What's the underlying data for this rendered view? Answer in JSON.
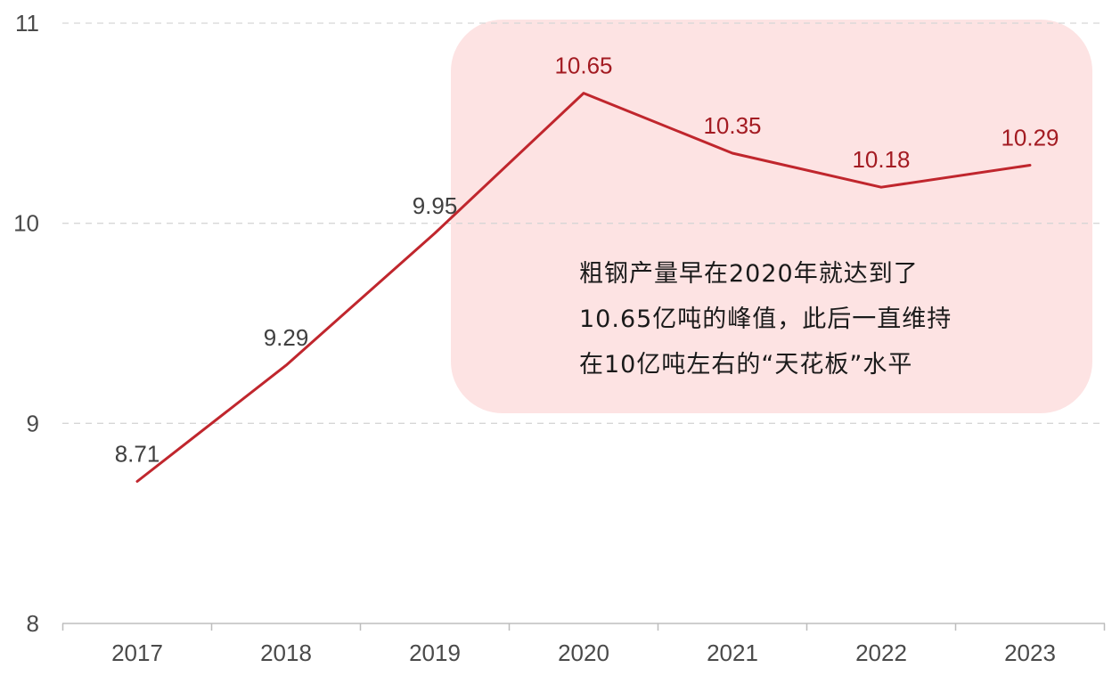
{
  "chart_data": {
    "type": "line",
    "categories": [
      "2017",
      "2018",
      "2019",
      "2020",
      "2021",
      "2022",
      "2023"
    ],
    "values": [
      8.71,
      9.29,
      9.95,
      10.65,
      10.35,
      10.18,
      10.29
    ],
    "data_labels": [
      "8.71",
      "9.29",
      "9.95",
      "10.65",
      "10.35",
      "10.18",
      "10.29"
    ],
    "ylim": [
      8,
      11
    ],
    "yticks": [
      "8",
      "9",
      "10",
      "11"
    ],
    "grid": "horizontal dashed",
    "highlight_range": [
      "2019",
      "2023"
    ],
    "annotation": [
      "粗钢产量早在2020年就达到了",
      "10.65亿吨的峰值，此后一直维持",
      "在10亿吨左右的“天花板”水平"
    ]
  },
  "colors": {
    "line": "#c0262d",
    "highlight_label": "#a31b22",
    "normal_label": "#404040",
    "highlight_box": "#fde3e3",
    "grid": "#d6d6d6",
    "axis": "#bdbdbd"
  }
}
